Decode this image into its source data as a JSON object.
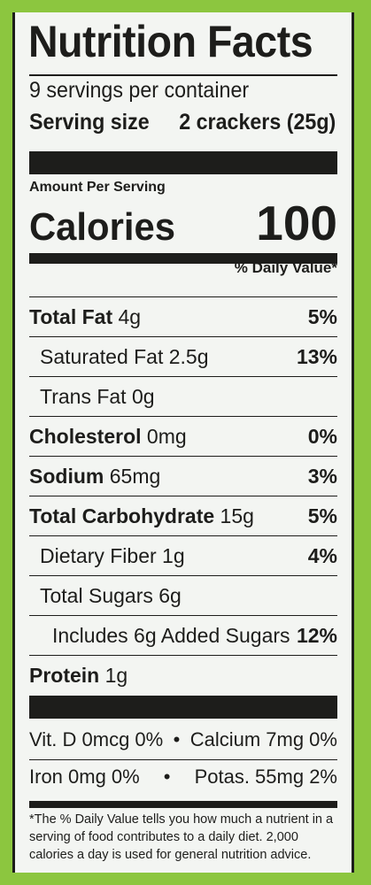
{
  "title": "Nutrition Facts",
  "servings_per_container": "9 servings per container",
  "serving_size_label": "Serving size",
  "serving_size_value": "2 crackers (25g)",
  "amount_per_serving": "Amount Per Serving",
  "calories_label": "Calories",
  "calories_value": "100",
  "daily_value_header": "% Daily Value*",
  "nutrients": [
    {
      "name": "Total Fat",
      "amount": "4g",
      "dv": "5%"
    },
    {
      "name": "Saturated Fat 2.5g",
      "dv": "13%"
    },
    {
      "name": "Trans Fat 0g",
      "dv": ""
    },
    {
      "name": "Cholesterol",
      "amount": "0mg",
      "dv": "0%"
    },
    {
      "name": "Sodium",
      "amount": "65mg",
      "dv": "3%"
    },
    {
      "name": "Total Carbohydrate",
      "amount": "15g",
      "dv": "5%"
    },
    {
      "name": "Dietary Fiber 1g",
      "dv": "4%"
    },
    {
      "name": "Total Sugars 6g",
      "dv": ""
    },
    {
      "name": "Includes 6g Added Sugars",
      "dv": "12%"
    },
    {
      "name": "Protein",
      "amount": "1g",
      "dv": ""
    }
  ],
  "vitamins": [
    {
      "left": "Vit. D 0mcg 0%",
      "sep": "•",
      "right": "Calcium 7mg 0%"
    },
    {
      "left": "Iron 0mg 0%",
      "sep": "•",
      "right": "Potas. 55mg 2%"
    }
  ],
  "footnote": "*The % Daily Value tells you how much a nutrient in a serving of food contributes to a daily diet. 2,000 calories a day is used for general nutrition advice."
}
